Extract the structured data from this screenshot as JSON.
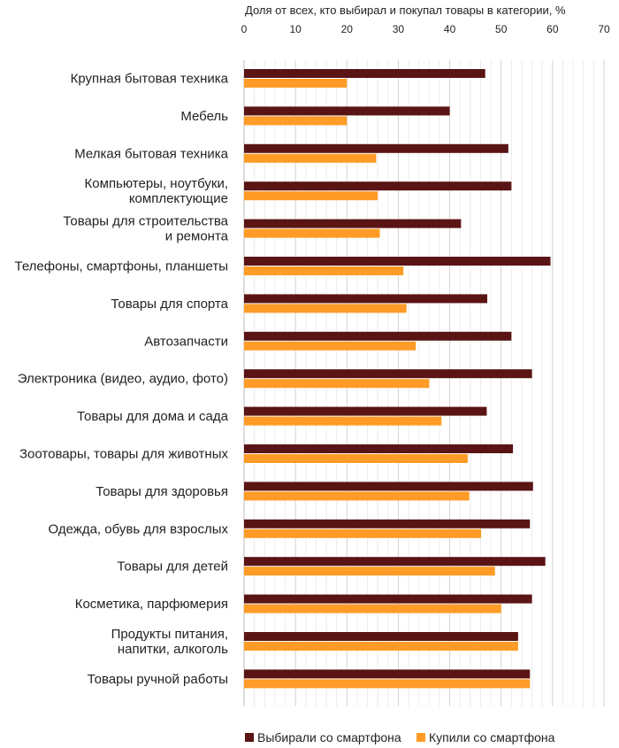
{
  "chart_data": {
    "type": "bar",
    "orientation": "horizontal",
    "title": "Доля от всех, кто выбирал и покупал товары в категории, %",
    "xlim": [
      0,
      70
    ],
    "xticks": [
      0,
      10,
      20,
      30,
      40,
      50,
      60,
      70
    ],
    "grid": true,
    "legend_position": "bottom",
    "categories": [
      [
        "Крупная бытовая техника"
      ],
      [
        "Мебель"
      ],
      [
        "Мелкая бытовая техника"
      ],
      [
        "Компьютеры, ноутбуки,",
        "комплектующие"
      ],
      [
        "Товары для строительства",
        "и ремонта"
      ],
      [
        "Телефоны, смартфоны, планшеты"
      ],
      [
        "Товары для спорта"
      ],
      [
        "Автозапчасти"
      ],
      [
        "Электроника (видео, аудио, фото)"
      ],
      [
        "Товары для дома и сада"
      ],
      [
        "Зоотовары, товары для животных"
      ],
      [
        "Товары для здоровья"
      ],
      [
        "Одежда, обувь для взрослых"
      ],
      [
        "Товары для детей"
      ],
      [
        "Косметика, парфюмерия"
      ],
      [
        "Продукты питания,",
        "напитки, алкоголь"
      ],
      [
        "Товары ручной работы"
      ]
    ],
    "series": [
      {
        "name": "Выбирали со смартфона",
        "color": "#5a1414",
        "values": [
          46.9,
          40.0,
          51.4,
          52.0,
          42.2,
          59.6,
          47.3,
          52.0,
          56.0,
          47.2,
          52.3,
          56.2,
          55.6,
          58.6,
          56.0,
          53.3,
          55.6
        ]
      },
      {
        "name": "Купили со смартфона",
        "color": "#ff9b26",
        "values": [
          20.0,
          20.0,
          25.7,
          26.0,
          26.4,
          31.0,
          31.6,
          33.4,
          36.0,
          38.4,
          43.5,
          43.8,
          46.1,
          48.8,
          50.0,
          53.3,
          55.6
        ]
      }
    ]
  }
}
